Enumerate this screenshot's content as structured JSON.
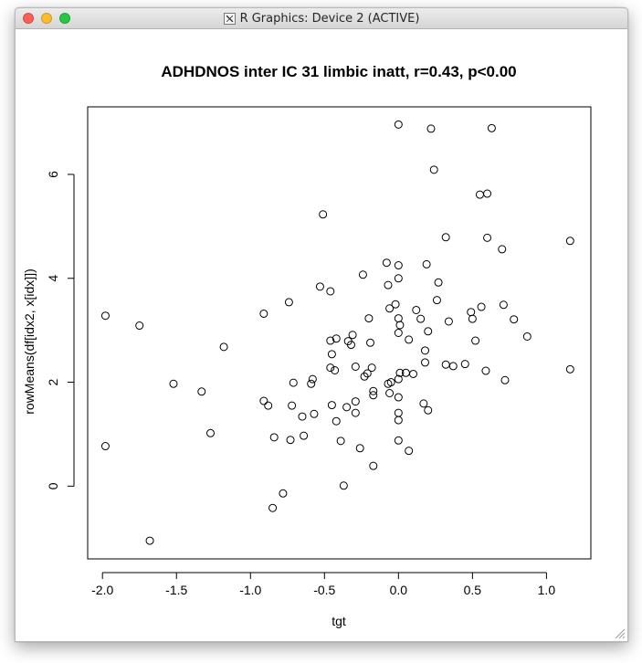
{
  "window": {
    "title": "R Graphics: Device 2 (ACTIVE)",
    "title_icon": "x11-icon",
    "controls": {
      "close_color": "#fe5f57",
      "minimize_color": "#febc2e",
      "maximize_color": "#28c840"
    }
  },
  "chart_data": {
    "type": "scatter",
    "title": "ADHDNOS inter IC 31 limbic inatt, r=0.43, p<0.00",
    "xlabel": "tgt",
    "ylabel": "rowMeans(df[idx2, x[idx]])",
    "xlim": [
      -2.1,
      1.3
    ],
    "ylim": [
      -1.4,
      7.3
    ],
    "xticks": [
      -2.0,
      -1.5,
      -1.0,
      -0.5,
      0.0,
      0.5,
      1.0
    ],
    "xtick_labels": [
      "-2.0",
      "-1.5",
      "-1.0",
      "-0.5",
      "0.0",
      "0.5",
      "1.0"
    ],
    "yticks": [
      0,
      2,
      4,
      6
    ],
    "ytick_labels": [
      "0",
      "2",
      "4",
      "6"
    ],
    "grid": false,
    "marker": "open-circle",
    "points": [
      [
        -1.98,
        3.28
      ],
      [
        -1.98,
        0.77
      ],
      [
        -1.75,
        3.09
      ],
      [
        -1.68,
        -1.05
      ],
      [
        -1.52,
        1.97
      ],
      [
        -1.33,
        1.82
      ],
      [
        -1.27,
        1.02
      ],
      [
        -1.18,
        2.68
      ],
      [
        -0.91,
        3.32
      ],
      [
        -0.91,
        1.64
      ],
      [
        -0.88,
        1.55
      ],
      [
        -0.84,
        0.94
      ],
      [
        -0.85,
        -0.42
      ],
      [
        -0.78,
        -0.14
      ],
      [
        -0.74,
        3.54
      ],
      [
        -0.73,
        0.89
      ],
      [
        -0.71,
        1.99
      ],
      [
        -0.72,
        1.55
      ],
      [
        -0.65,
        1.34
      ],
      [
        -0.64,
        0.97
      ],
      [
        -0.59,
        1.97
      ],
      [
        -0.58,
        2.06
      ],
      [
        -0.57,
        1.39
      ],
      [
        -0.53,
        3.84
      ],
      [
        -0.51,
        5.23
      ],
      [
        -0.46,
        3.75
      ],
      [
        -0.46,
        2.8
      ],
      [
        -0.45,
        2.54
      ],
      [
        -0.46,
        2.28
      ],
      [
        -0.42,
        2.84
      ],
      [
        -0.43,
        2.23
      ],
      [
        -0.45,
        1.56
      ],
      [
        -0.42,
        1.25
      ],
      [
        -0.39,
        0.87
      ],
      [
        -0.37,
        0.01
      ],
      [
        -0.35,
        1.52
      ],
      [
        -0.32,
        2.72
      ],
      [
        -0.31,
        2.91
      ],
      [
        -0.34,
        2.79
      ],
      [
        -0.29,
        2.3
      ],
      [
        -0.29,
        1.63
      ],
      [
        -0.29,
        1.41
      ],
      [
        -0.26,
        0.73
      ],
      [
        -0.24,
        4.07
      ],
      [
        -0.23,
        2.11
      ],
      [
        -0.2,
        3.23
      ],
      [
        -0.19,
        2.76
      ],
      [
        -0.21,
        2.17
      ],
      [
        -0.18,
        2.28
      ],
      [
        -0.17,
        1.83
      ],
      [
        -0.17,
        1.75
      ],
      [
        -0.17,
        0.39
      ],
      [
        -0.08,
        4.3
      ],
      [
        -0.07,
        3.87
      ],
      [
        -0.06,
        3.42
      ],
      [
        -0.07,
        1.97
      ],
      [
        -0.06,
        1.79
      ],
      [
        -0.05,
        2.0
      ],
      [
        -0.02,
        3.5
      ],
      [
        0.0,
        6.96
      ],
      [
        0.0,
        4.25
      ],
      [
        0.0,
        4.0
      ],
      [
        0.0,
        3.23
      ],
      [
        0.0,
        2.95
      ],
      [
        0.0,
        2.06
      ],
      [
        0.01,
        3.1
      ],
      [
        0.01,
        2.18
      ],
      [
        0.0,
        1.71
      ],
      [
        0.0,
        1.41
      ],
      [
        0.0,
        1.27
      ],
      [
        0.0,
        0.88
      ],
      [
        0.05,
        2.18
      ],
      [
        0.07,
        2.82
      ],
      [
        0.07,
        0.68
      ],
      [
        0.1,
        2.16
      ],
      [
        0.12,
        3.39
      ],
      [
        0.15,
        3.22
      ],
      [
        0.17,
        1.59
      ],
      [
        0.18,
        2.61
      ],
      [
        0.18,
        2.38
      ],
      [
        0.19,
        4.27
      ],
      [
        0.2,
        2.98
      ],
      [
        0.2,
        1.46
      ],
      [
        0.22,
        6.88
      ],
      [
        0.24,
        6.09
      ],
      [
        0.26,
        3.58
      ],
      [
        0.27,
        3.92
      ],
      [
        0.32,
        4.79
      ],
      [
        0.32,
        2.34
      ],
      [
        0.34,
        3.17
      ],
      [
        0.37,
        2.31
      ],
      [
        0.45,
        2.35
      ],
      [
        0.49,
        3.35
      ],
      [
        0.5,
        3.22
      ],
      [
        0.52,
        2.8
      ],
      [
        0.55,
        5.61
      ],
      [
        0.56,
        3.45
      ],
      [
        0.59,
        2.22
      ],
      [
        0.6,
        5.63
      ],
      [
        0.6,
        4.78
      ],
      [
        0.63,
        6.89
      ],
      [
        0.7,
        4.56
      ],
      [
        0.71,
        3.49
      ],
      [
        0.72,
        2.04
      ],
      [
        0.78,
        3.21
      ],
      [
        0.87,
        2.88
      ],
      [
        1.16,
        4.72
      ],
      [
        1.16,
        2.25
      ]
    ]
  }
}
